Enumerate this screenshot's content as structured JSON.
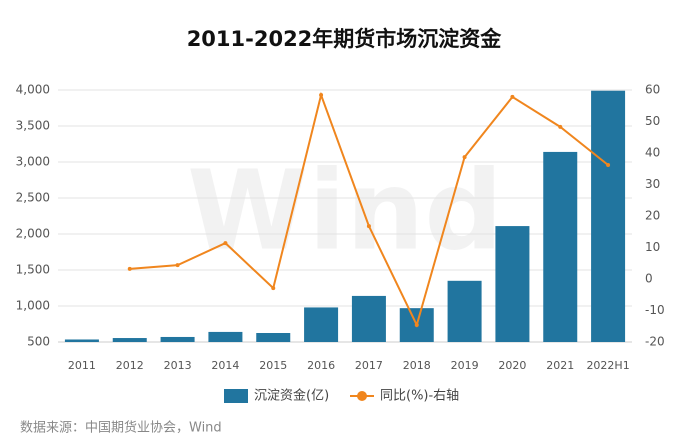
{
  "chart_data": {
    "type": "bar_line",
    "title": "2011-2022年期货市场沉淀资金",
    "watermark": "Wind",
    "source": "数据来源：中国期货业协会，Wind",
    "categories": [
      "2011",
      "2012",
      "2013",
      "2014",
      "2015",
      "2016",
      "2017",
      "2018",
      "2019",
      "2020",
      "2021",
      "2022H1"
    ],
    "series": [
      {
        "name": "沉淀资金(亿)",
        "type": "bar",
        "color": "#21759f",
        "values": [
          535,
          555,
          570,
          640,
          625,
          980,
          1140,
          970,
          1350,
          2110,
          3140,
          3990
        ]
      },
      {
        "name": "同比(%)-右轴",
        "type": "line",
        "axis": "y2",
        "color": "#f0861e",
        "values": [
          null,
          3.2,
          4.4,
          11.4,
          -2.9,
          58.4,
          16.8,
          -14.6,
          38.7,
          57.8,
          48.3,
          36.2
        ]
      }
    ],
    "ylim": [
      500,
      4000
    ],
    "yticks": [
      {
        "value": 500,
        "label": "500"
      },
      {
        "value": 1000,
        "label": "1,000"
      },
      {
        "value": 1500,
        "label": "1,500"
      },
      {
        "value": 2000,
        "label": "2,000"
      },
      {
        "value": 2500,
        "label": "2,500"
      },
      {
        "value": 3000,
        "label": "3,000"
      },
      {
        "value": 3500,
        "label": "3,500"
      },
      {
        "value": 4000,
        "label": "4,000"
      }
    ],
    "y2lim": [
      -20,
      60
    ],
    "y2ticks": [
      -20,
      -10,
      0,
      10,
      20,
      30,
      40,
      50,
      60
    ],
    "grid": true
  }
}
